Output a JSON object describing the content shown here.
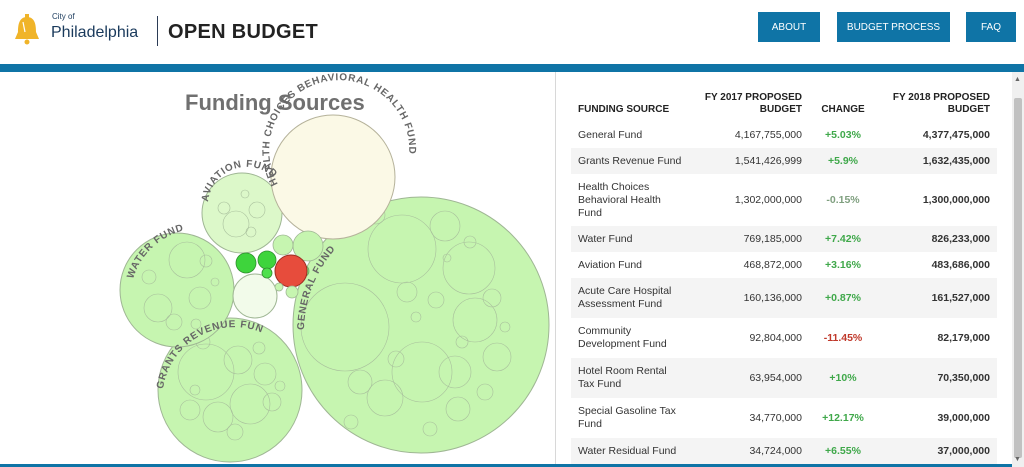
{
  "header": {
    "city_of": "City of",
    "city_name": "Philadelphia",
    "brand": "OPEN BUDGET",
    "nav": [
      {
        "label": "ABOUT"
      },
      {
        "label": "BUDGET PROCESS"
      },
      {
        "label": "FAQ"
      }
    ]
  },
  "chart": {
    "title": "Funding Sources",
    "bubble_labels": [
      "HEALTH CHOICES BEHAVIORAL HEALTH FUND",
      "AVIATION FUND",
      "WATER FUND",
      "GENERAL FUND",
      "GRANTS REVENUE FUND"
    ]
  },
  "table": {
    "headers": {
      "source": "FUNDING SOURCE",
      "fy2017": "FY 2017 PROPOSED BUDGET",
      "change": "CHANGE",
      "fy2018": "FY 2018 PROPOSED BUDGET"
    },
    "rows": [
      {
        "source": "General Fund",
        "fy2017": "4,167,755,000",
        "change": "+5.03%",
        "fy2018": "4,377,475,000"
      },
      {
        "source": "Grants Revenue Fund",
        "fy2017": "1,541,426,999",
        "change": "+5.9%",
        "fy2018": "1,632,435,000"
      },
      {
        "source": "Health Choices Behavioral Health Fund",
        "fy2017": "1,302,000,000",
        "change": "-0.15%",
        "fy2018": "1,300,000,000"
      },
      {
        "source": "Water Fund",
        "fy2017": "769,185,000",
        "change": "+7.42%",
        "fy2018": "826,233,000"
      },
      {
        "source": "Aviation Fund",
        "fy2017": "468,872,000",
        "change": "+3.16%",
        "fy2018": "483,686,000"
      },
      {
        "source": "Acute Care Hospital Assessment Fund",
        "fy2017": "160,136,000",
        "change": "+0.87%",
        "fy2018": "161,527,000"
      },
      {
        "source": "Community Development Fund",
        "fy2017": "92,804,000",
        "change": "-11.45%",
        "fy2018": "82,179,000"
      },
      {
        "source": "Hotel Room Rental Tax Fund",
        "fy2017": "63,954,000",
        "change": "+10%",
        "fy2018": "70,350,000"
      },
      {
        "source": "Special Gasoline Tax Fund",
        "fy2017": "34,770,000",
        "change": "+12.17%",
        "fy2018": "39,000,000"
      },
      {
        "source": "Water Residual Fund",
        "fy2017": "34,724,000",
        "change": "+6.55%",
        "fy2018": "37,000,000"
      }
    ]
  },
  "colors": {
    "nav_blue": "#0f74a6",
    "positive": "#3fa84a",
    "negative": "#c0392b",
    "bubble_green": "#c6f5b0",
    "bubble_cream": "#fbf9e6",
    "bubble_red": "#e74c3c"
  },
  "icons": {
    "logo": "liberty-bell-icon"
  }
}
